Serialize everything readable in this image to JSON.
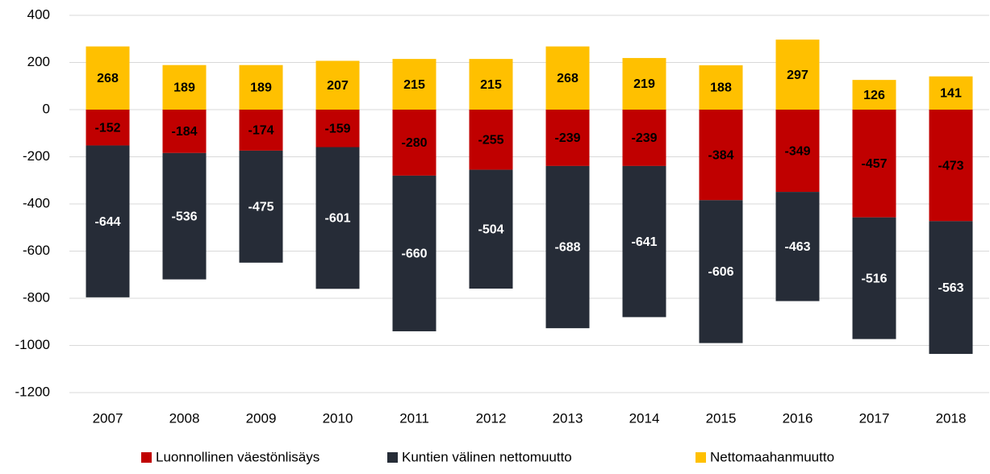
{
  "chart_data": {
    "type": "stacked_bar",
    "categories": [
      "2007",
      "2008",
      "2009",
      "2010",
      "2011",
      "2012",
      "2013",
      "2014",
      "2015",
      "2016",
      "2017",
      "2018"
    ],
    "series": [
      {
        "name": "Luonnollinen väestönlisäys",
        "color": "#c00000",
        "values": [
          -152,
          -184,
          -174,
          -159,
          -280,
          -255,
          -239,
          -239,
          -384,
          -349,
          -457,
          -473
        ]
      },
      {
        "name": "Kuntien välinen nettomuutto",
        "color": "#262c37",
        "values": [
          -644,
          -536,
          -475,
          -601,
          -660,
          -504,
          -688,
          -641,
          -606,
          -463,
          -516,
          -563
        ]
      },
      {
        "name": "Nettomaahanmuutto",
        "color": "#ffc000",
        "values": [
          268,
          189,
          189,
          207,
          215,
          215,
          268,
          219,
          188,
          297,
          126,
          141
        ]
      }
    ],
    "ylim": [
      -1200,
      400
    ],
    "yticks": [
      -1200,
      -1000,
      -800,
      -600,
      -400,
      -200,
      0,
      200,
      400
    ],
    "grid": true,
    "legend": "bottom"
  }
}
